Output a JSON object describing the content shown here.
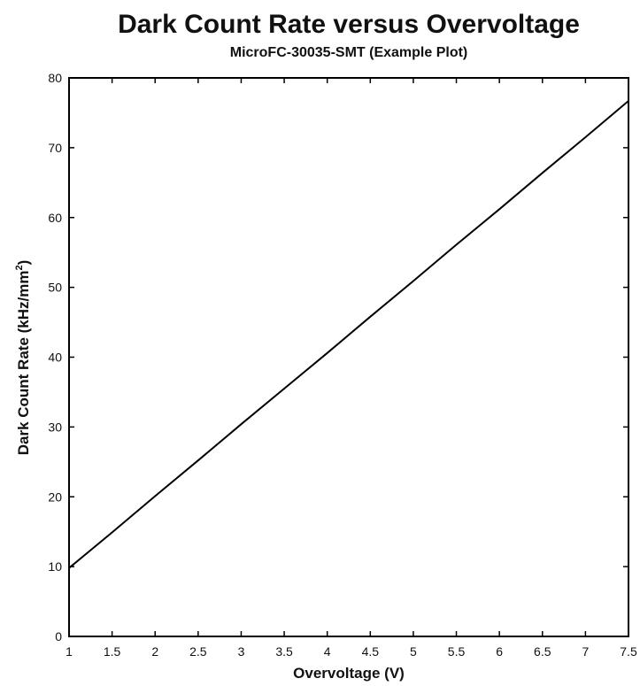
{
  "chart_data": {
    "type": "line",
    "title": "Dark Count Rate versus Overvoltage",
    "subtitle": "MicroFC-30035-SMT (Example Plot)",
    "xlabel": "Overvoltage (V)",
    "ylabel": {
      "text": "Dark Count Rate (kHz/mm",
      "superscript": "2",
      "suffix": ")"
    },
    "xlim": [
      1,
      7.5
    ],
    "ylim": [
      0,
      80
    ],
    "x_ticks": [
      "1",
      "1.5",
      "2",
      "2.5",
      "3",
      "3.5",
      "4",
      "4.5",
      "5",
      "5.5",
      "6",
      "6.5",
      "7",
      "7.5"
    ],
    "y_ticks": [
      "0",
      "10",
      "20",
      "30",
      "40",
      "50",
      "60",
      "70",
      "80"
    ],
    "grid": false,
    "legend": "none",
    "series": [
      {
        "x": [
          1,
          1.5,
          2,
          2.5,
          3,
          3.5,
          4,
          4.5,
          5,
          5.5,
          6,
          6.5,
          7,
          7.5
        ],
        "y": [
          9.8,
          14.9,
          20.1,
          25.2,
          30.4,
          35.5,
          40.6,
          45.8,
          50.9,
          56.1,
          61.2,
          66.4,
          71.5,
          76.7
        ],
        "color": "#000000"
      }
    ]
  }
}
